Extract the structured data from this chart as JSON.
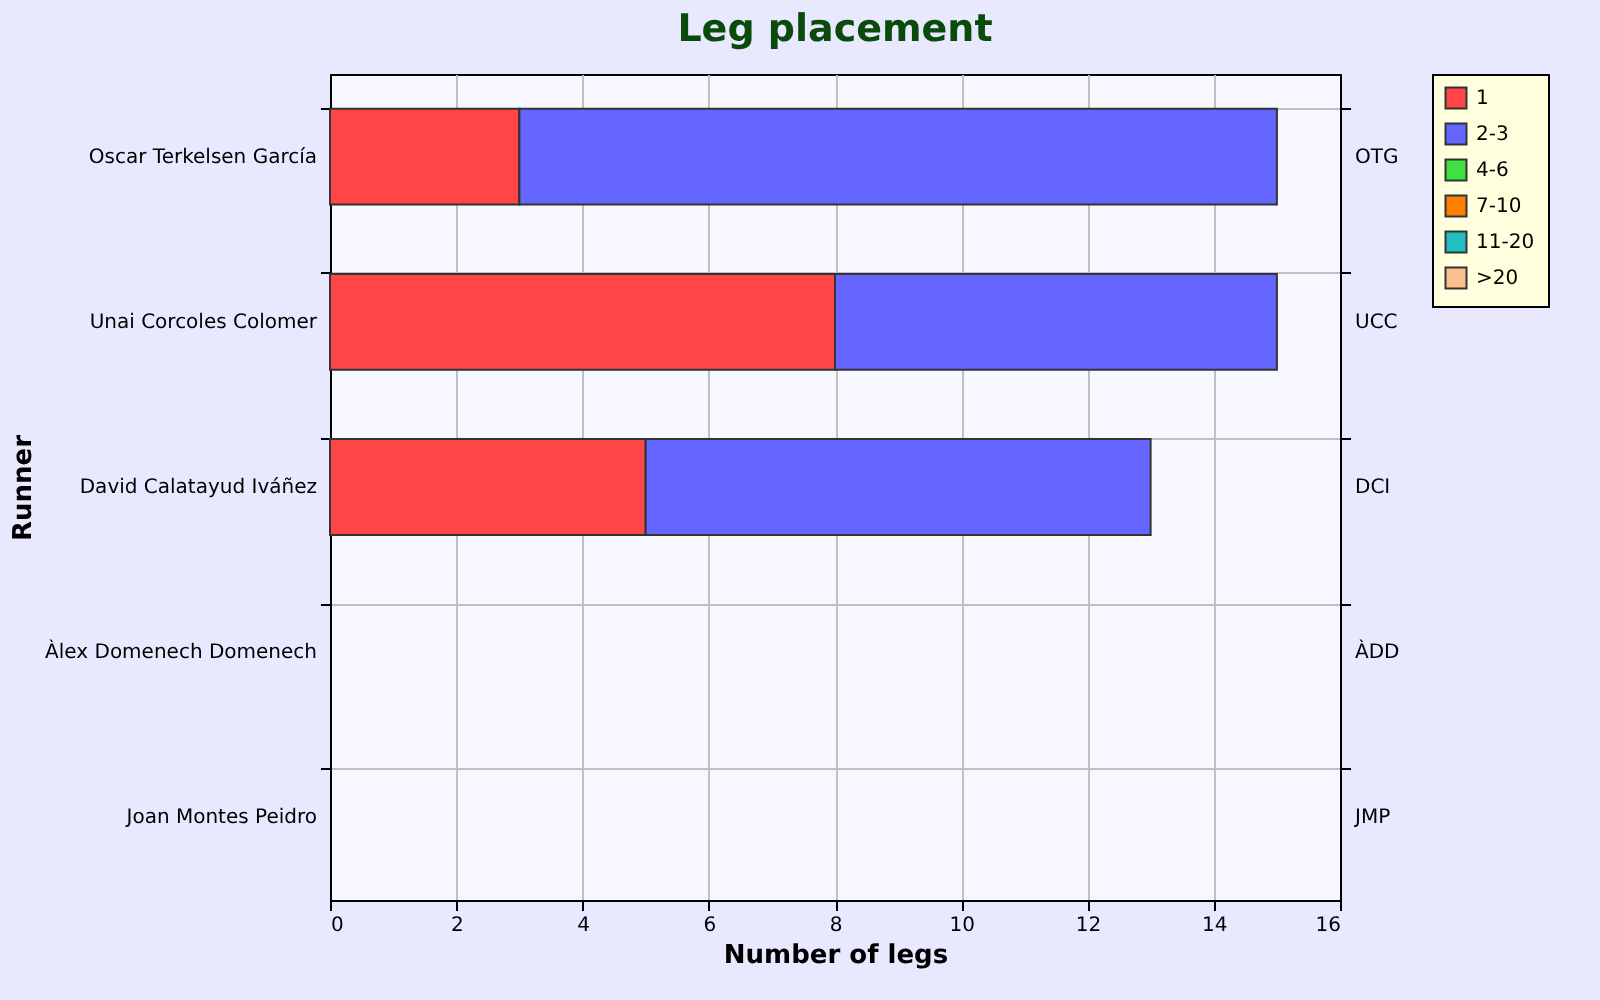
{
  "chart_data": {
    "type": "bar",
    "orientation": "horizontal",
    "stacked": true,
    "title": "Leg placement",
    "xlabel": "Number of legs",
    "ylabel": "Runner",
    "categories": [
      "Oscar Terkelsen García",
      "Unai Corcoles Colomer",
      "David Calatayud Iváñez",
      "Àlex Domenech Domenech",
      "Joan Montes Peidro"
    ],
    "y2_categories": [
      "OTG",
      "UCC",
      "DCI",
      "ÀDD",
      "JMP"
    ],
    "series": [
      {
        "name": "1",
        "color": "#ff4545",
        "values": [
          3,
          8,
          5,
          0,
          0
        ]
      },
      {
        "name": "2-3",
        "color": "#6565ff",
        "values": [
          12,
          7,
          8,
          0,
          0
        ]
      },
      {
        "name": "4-6",
        "color": "#40e040",
        "values": [
          0,
          0,
          0,
          0,
          0
        ]
      },
      {
        "name": "7-10",
        "color": "#ff8000",
        "values": [
          0,
          0,
          0,
          0,
          0
        ]
      },
      {
        "name": "11-20",
        "color": "#20c0c0",
        "values": [
          0,
          0,
          0,
          0,
          0
        ]
      },
      {
        "name": ">20",
        "color": "#ffc090",
        "values": [
          0,
          0,
          0,
          0,
          0
        ]
      }
    ],
    "xlim": [
      0,
      16
    ],
    "xticks": [
      0,
      2,
      4,
      6,
      8,
      10,
      12,
      14,
      16
    ],
    "grid": true,
    "legend": "right"
  }
}
